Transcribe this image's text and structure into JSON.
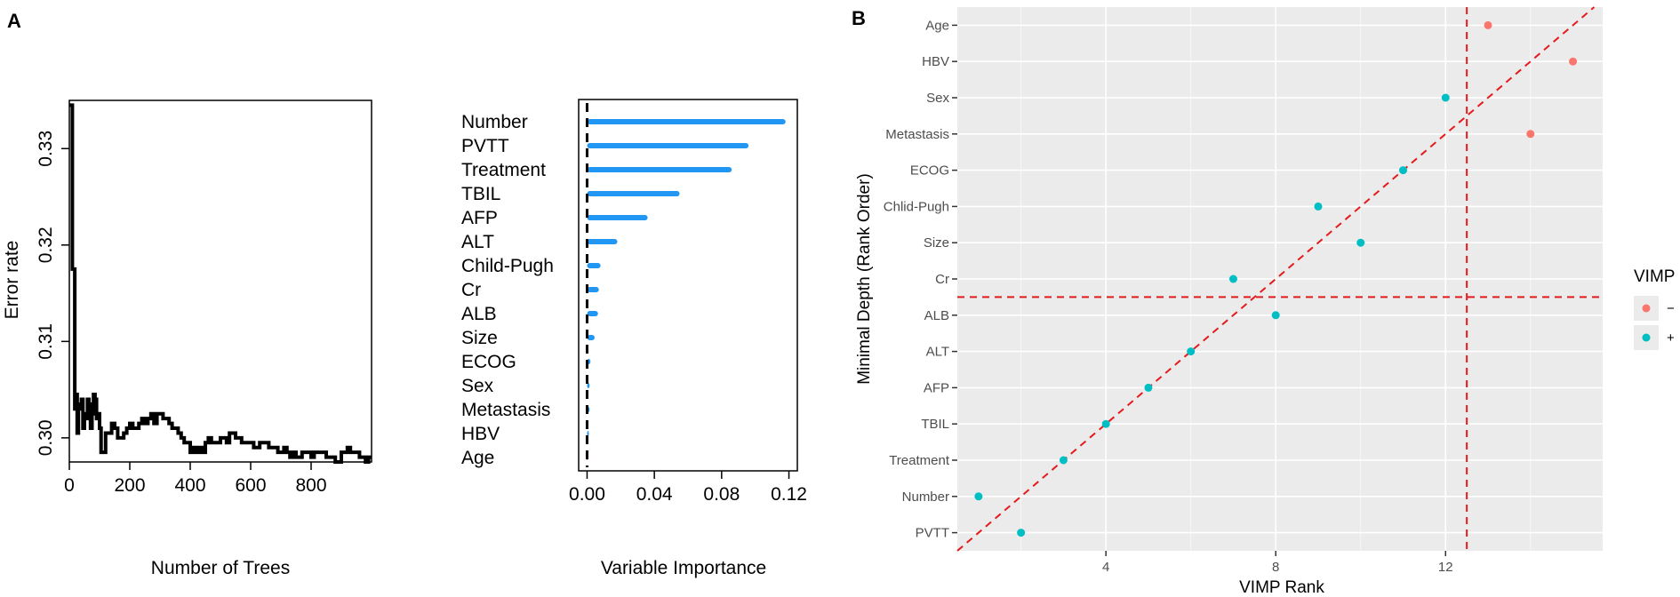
{
  "panels": {
    "a_label": "A",
    "b_label": "B"
  },
  "colors": {
    "line": "#000000",
    "vimp_bar": "#2196f3",
    "vimp_neg": "#f8766d",
    "vimp_pos": "#00bfc4",
    "ref_line": "#e41a1c",
    "panel_bg": "#ebebeb",
    "grid": "#ffffff"
  },
  "chart_data": [
    {
      "type": "line",
      "id": "error-rate",
      "xlabel": "Number of Trees",
      "ylabel": "Error rate",
      "xlim": [
        0,
        1000
      ],
      "ylim": [
        0.2975,
        0.335
      ],
      "xticks": [
        0,
        200,
        400,
        600,
        800
      ],
      "yticks": [
        0.3,
        0.31,
        0.32,
        0.33
      ],
      "ytick_labels": [
        "0.30",
        "0.31",
        "0.32",
        "0.33"
      ],
      "x": [
        1,
        8,
        10,
        15,
        18,
        22,
        26,
        30,
        35,
        40,
        45,
        50,
        55,
        60,
        65,
        70,
        75,
        80,
        85,
        90,
        95,
        100,
        105,
        110,
        120,
        130,
        140,
        150,
        160,
        170,
        180,
        190,
        200,
        210,
        220,
        230,
        240,
        250,
        260,
        270,
        280,
        290,
        300,
        310,
        320,
        330,
        340,
        350,
        360,
        370,
        380,
        390,
        400,
        410,
        420,
        430,
        440,
        450,
        460,
        470,
        480,
        490,
        500,
        510,
        520,
        530,
        540,
        550,
        560,
        570,
        580,
        590,
        600,
        610,
        620,
        630,
        640,
        650,
        660,
        670,
        680,
        690,
        700,
        710,
        720,
        730,
        740,
        750,
        760,
        770,
        780,
        790,
        800,
        810,
        820,
        830,
        840,
        850,
        860,
        870,
        880,
        890,
        900,
        910,
        920,
        930,
        940,
        950,
        960,
        970,
        980,
        990,
        1000
      ],
      "y": [
        0.3345,
        0.3345,
        0.3175,
        0.3175,
        0.303,
        0.3045,
        0.3005,
        0.303,
        0.3035,
        0.304,
        0.301,
        0.3025,
        0.302,
        0.304,
        0.3035,
        0.301,
        0.3025,
        0.3045,
        0.304,
        0.302,
        0.3025,
        0.301,
        0.2985,
        0.2985,
        0.3005,
        0.3005,
        0.3015,
        0.301,
        0.3,
        0.3,
        0.3005,
        0.301,
        0.3015,
        0.301,
        0.301,
        0.3015,
        0.302,
        0.3015,
        0.302,
        0.3025,
        0.3015,
        0.3025,
        0.3025,
        0.302,
        0.302,
        0.3015,
        0.301,
        0.301,
        0.3005,
        0.3,
        0.2995,
        0.2995,
        0.2985,
        0.299,
        0.2985,
        0.299,
        0.2985,
        0.2995,
        0.3,
        0.2995,
        0.2995,
        0.2995,
        0.3,
        0.3,
        0.2995,
        0.3005,
        0.3005,
        0.3,
        0.3,
        0.2995,
        0.2995,
        0.2995,
        0.2995,
        0.299,
        0.299,
        0.2995,
        0.2995,
        0.2995,
        0.299,
        0.299,
        0.299,
        0.2985,
        0.2985,
        0.299,
        0.2985,
        0.298,
        0.2985,
        0.298,
        0.298,
        0.2985,
        0.2985,
        0.2985,
        0.298,
        0.2985,
        0.2985,
        0.2985,
        0.2985,
        0.298,
        0.298,
        0.298,
        0.2975,
        0.2975,
        0.2985,
        0.2985,
        0.299,
        0.2985,
        0.2985,
        0.2985,
        0.298,
        0.298,
        0.2975,
        0.298,
        0.298
      ]
    },
    {
      "type": "bar",
      "id": "variable-importance",
      "orientation": "horizontal",
      "xlabel": "Variable Importance",
      "xlim": [
        -0.005,
        0.125
      ],
      "xticks": [
        0.0,
        0.04,
        0.08,
        0.12
      ],
      "xtick_labels": [
        "0.00",
        "0.04",
        "0.08",
        "0.12"
      ],
      "categories": [
        "Number",
        "PVTT",
        "Treatment",
        "TBIL",
        "AFP",
        "ALT",
        "Child-Pugh",
        "Cr",
        "ALB",
        "Size",
        "ECOG",
        "Sex",
        "Metastasis",
        "HBV",
        "Age"
      ],
      "values": [
        0.118,
        0.096,
        0.086,
        0.055,
        0.036,
        0.018,
        0.008,
        0.007,
        0.0065,
        0.0045,
        0.002,
        0.0015,
        0.0015,
        0.0005,
        -0.0005
      ]
    },
    {
      "type": "scatter",
      "id": "vimp-vs-min-depth",
      "xlabel": "VIMP Rank",
      "ylabel": "Minimal Depth (Rank Order)",
      "xlim": [
        0.5,
        15.7
      ],
      "xticks": [
        4,
        8,
        12
      ],
      "ylim": [
        0.5,
        15.5
      ],
      "ytick_labels": [
        "Age",
        "HBV",
        "Sex",
        "Metastasis",
        "ECOG",
        "Chlid-Pugh",
        "Size",
        "Cr",
        "ALB",
        "ALT",
        "AFP",
        "TBIL",
        "Treatment",
        "Number",
        "PVTT"
      ],
      "legend": {
        "title": "VIMP",
        "position": "right",
        "entries": [
          {
            "label": "−",
            "color": "#f8766d"
          },
          {
            "label": "+",
            "color": "#00bfc4"
          }
        ]
      },
      "reference_lines": {
        "vertical_x": 12.5,
        "horizontal_y": 7.5,
        "diagonal": "y = x"
      },
      "points": [
        {
          "name": "Age",
          "x": 13,
          "y": 15,
          "sign": "-"
        },
        {
          "name": "HBV",
          "x": 15,
          "y": 14,
          "sign": "-"
        },
        {
          "name": "Sex",
          "x": 12,
          "y": 13,
          "sign": "+"
        },
        {
          "name": "Metastasis",
          "x": 14,
          "y": 12,
          "sign": "-"
        },
        {
          "name": "ECOG",
          "x": 11,
          "y": 11,
          "sign": "+"
        },
        {
          "name": "Chlid-Pugh",
          "x": 9,
          "y": 10,
          "sign": "+"
        },
        {
          "name": "Size",
          "x": 10,
          "y": 9,
          "sign": "+"
        },
        {
          "name": "Cr",
          "x": 7,
          "y": 8,
          "sign": "+"
        },
        {
          "name": "ALB",
          "x": 8,
          "y": 7,
          "sign": "+"
        },
        {
          "name": "ALT",
          "x": 6,
          "y": 6,
          "sign": "+"
        },
        {
          "name": "AFP",
          "x": 5,
          "y": 5,
          "sign": "+"
        },
        {
          "name": "TBIL",
          "x": 4,
          "y": 4,
          "sign": "+"
        },
        {
          "name": "Treatment",
          "x": 3,
          "y": 3,
          "sign": "+"
        },
        {
          "name": "Number",
          "x": 1,
          "y": 2,
          "sign": "+"
        },
        {
          "name": "PVTT",
          "x": 2,
          "y": 1,
          "sign": "+"
        }
      ]
    }
  ]
}
